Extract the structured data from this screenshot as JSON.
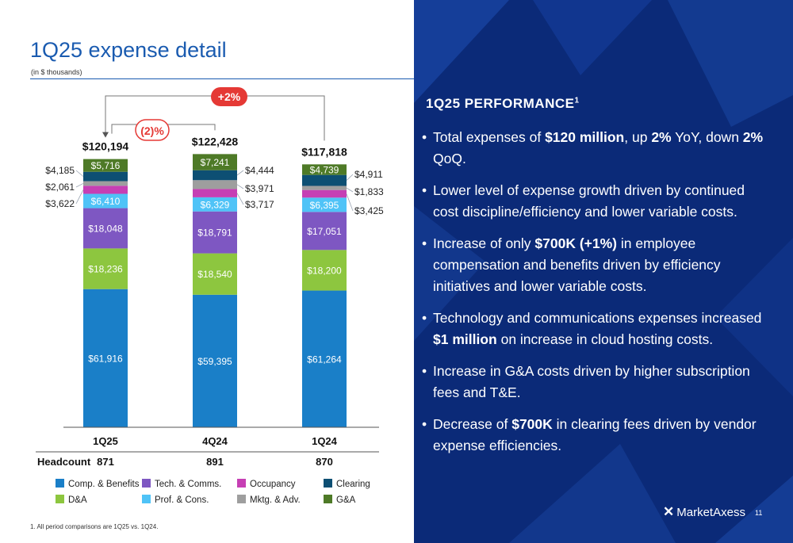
{
  "slide": {
    "title": "1Q25 expense detail",
    "subtitle": "(in $ thousands)",
    "footnote": "1. All period comparisons are 1Q25 vs. 1Q24.",
    "page_number": "11",
    "logo_text": "MarketAxess",
    "logo_mark": "✕"
  },
  "comparisons": {
    "yoy_label": "+2%",
    "qoq_label": "(2)%"
  },
  "headcount": {
    "label": "Headcount",
    "values": [
      "871",
      "891",
      "870"
    ]
  },
  "colors": {
    "comp_benefits": "#1a7fc8",
    "da": "#8dc63f",
    "tech_comms": "#7e57c2",
    "prof_cons": "#4fc3f7",
    "occupancy": "#c63fb4",
    "mktg_adv": "#9e9e9e",
    "clearing": "#0d4f73",
    "ga": "#4e7a27",
    "callout": "#e53935",
    "right_bg": "#0b2a78"
  },
  "chart_data": {
    "type": "bar",
    "stacked": true,
    "categories": [
      "1Q25",
      "4Q24",
      "1Q24"
    ],
    "totals": [
      "$120,194",
      "$122,428",
      "$117,818"
    ],
    "total_values": [
      120194,
      122428,
      117818
    ],
    "series": [
      {
        "name": "Comp. & Benefits",
        "key": "comp_benefits",
        "values": [
          61916,
          59395,
          61264
        ],
        "labels": [
          "$61,916",
          "$59,395",
          "$61,264"
        ]
      },
      {
        "name": "D&A",
        "key": "da",
        "values": [
          18236,
          18540,
          18200
        ],
        "labels": [
          "$18,236",
          "$18,540",
          "$18,200"
        ]
      },
      {
        "name": "Tech. & Comms.",
        "key": "tech_comms",
        "values": [
          18048,
          18791,
          17051
        ],
        "labels": [
          "$18,048",
          "$18,791",
          "$17,051"
        ]
      },
      {
        "name": "Prof. & Cons.",
        "key": "prof_cons",
        "values": [
          6410,
          6329,
          6395
        ],
        "labels": [
          "$6,410",
          "$6,329",
          "$6,395"
        ]
      },
      {
        "name": "Occupancy",
        "key": "occupancy",
        "values": [
          3622,
          3717,
          3425
        ],
        "labels": [
          "$3,622",
          "$3,717",
          "$3,425"
        ]
      },
      {
        "name": "Mktg. & Adv.",
        "key": "mktg_adv",
        "values": [
          2061,
          3971,
          1833
        ],
        "labels": [
          "$2,061",
          "$3,971",
          "$1,833"
        ]
      },
      {
        "name": "Clearing",
        "key": "clearing",
        "values": [
          4185,
          4444,
          4911
        ],
        "labels": [
          "$4,185",
          "$4,444",
          "$4,911"
        ]
      },
      {
        "name": "G&A",
        "key": "ga",
        "values": [
          5716,
          7241,
          4739
        ],
        "labels": [
          "$5,716",
          "$7,241",
          "$4,739"
        ]
      }
    ]
  },
  "legend_order": [
    "comp_benefits",
    "tech_comms",
    "occupancy",
    "clearing",
    "da",
    "prof_cons",
    "mktg_adv",
    "ga"
  ],
  "performance": {
    "title": "1Q25 PERFORMANCE",
    "title_sup": "1",
    "bullet_symbol": "•",
    "bullets": [
      [
        {
          "t": "Total expenses of "
        },
        {
          "t": "$120 million",
          "b": true
        },
        {
          "t": ", up "
        },
        {
          "t": "2%",
          "b": true
        },
        {
          "t": " YoY, down "
        },
        {
          "t": "2%",
          "b": true
        },
        {
          "t": " QoQ."
        }
      ],
      [
        {
          "t": "Lower level of expense growth driven by continued cost discipline/efficiency and lower variable costs."
        }
      ],
      [
        {
          "t": "Increase of only "
        },
        {
          "t": "$700K (+1%)",
          "b": true
        },
        {
          "t": " in employee compensation and benefits driven by efficiency initiatives and lower variable costs."
        }
      ],
      [
        {
          "t": "Technology and communications expenses increased "
        },
        {
          "t": "$1 million",
          "b": true
        },
        {
          "t": " on increase in cloud hosting costs."
        }
      ],
      [
        {
          "t": "Increase in G&A costs driven by higher subscription fees and T&E."
        }
      ],
      [
        {
          "t": "Decrease of "
        },
        {
          "t": "$700K",
          "b": true
        },
        {
          "t": " in clearing fees driven by vendor expense efficiencies."
        }
      ]
    ]
  }
}
